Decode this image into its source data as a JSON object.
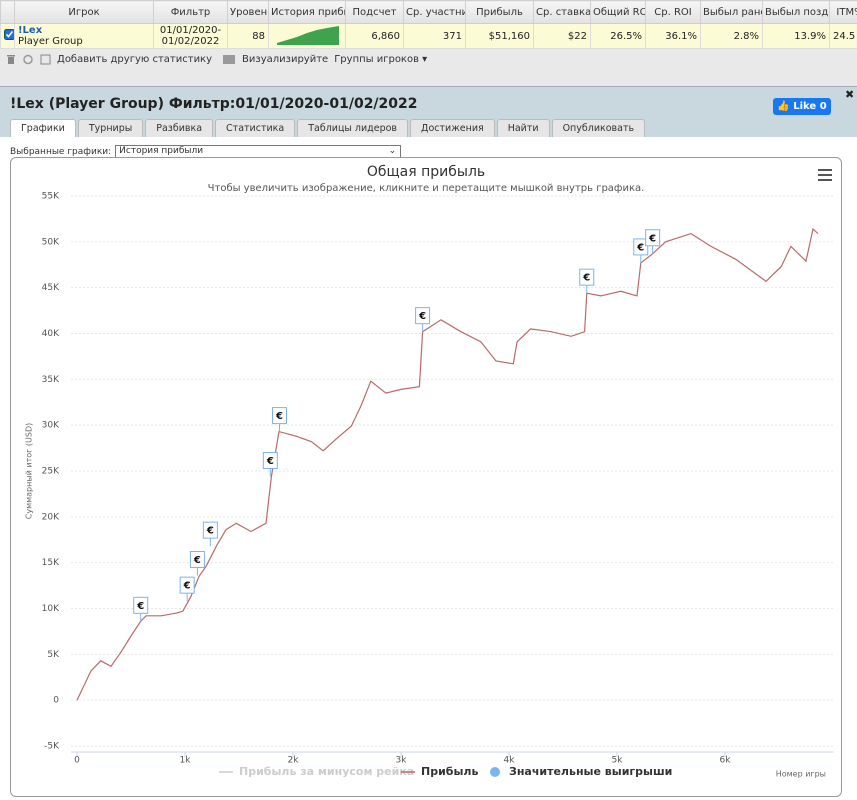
{
  "table": {
    "headers": [
      "Игрок",
      "Фильтр",
      "Уровен",
      "История прибы",
      "Подсчет",
      "Ср. участни",
      "Прибыль",
      "Ср. ставка",
      "Общий ROI",
      "Ср. ROI",
      "Выбыл ранс",
      "Выбыл позд",
      "ITM%"
    ],
    "row": {
      "player": "!Lex",
      "group": "Player Group",
      "filter": "01/01/2020-01/02/2022",
      "level": "88",
      "count": "6,860",
      "avg_entrants": "371",
      "profit": "$51,160",
      "avg_stake": "$22",
      "total_roi": "26.5%",
      "avg_roi": "36.1%",
      "early_exit": "2.8%",
      "late_exit": "13.9%",
      "itm": "24.5"
    }
  },
  "toolbar": {
    "add_stat": "Добавить другую статистику",
    "visualize": "Визуализируйте",
    "groups": "Группы игроков"
  },
  "panel": {
    "title": "!Lex (Player Group) Фильтр:01/01/2020-01/02/2022",
    "like_label": "Like",
    "like_count": "0",
    "tabs": [
      "Графики",
      "Турниры",
      "Разбивка",
      "Статистика",
      "Таблицы лидеров",
      "Достижения",
      "Найти",
      "Опубликовать"
    ],
    "select_label": "Выбранные графики:",
    "select_value": "История прибыли"
  },
  "chart_data": {
    "type": "line",
    "title": "Общая прибыль",
    "subtitle": "Чтобы увеличить изображение, кликните и перетащите мышкой внутрь графика.",
    "y_label": "Суммарный итог (USD)",
    "x_label": "Номер игры",
    "xlim": [
      0,
      6950
    ],
    "xticks": [
      0,
      {
        "value": 1000,
        "label": "1k"
      },
      {
        "value": 2000,
        "label": "2k"
      },
      {
        "value": 3000,
        "label": "3k"
      },
      {
        "value": 4000,
        "label": "4k"
      },
      {
        "value": 5000,
        "label": "5k"
      },
      {
        "value": 6000,
        "label": "6k"
      }
    ],
    "ylim": [
      -5000,
      55000
    ],
    "yticks": [
      {
        "value": -5000,
        "label": "-5K"
      },
      0,
      {
        "value": 5000,
        "label": "5K"
      },
      {
        "value": 10000,
        "label": "10K"
      },
      {
        "value": 15000,
        "label": "15K"
      },
      {
        "value": 20000,
        "label": "20K"
      },
      {
        "value": 25000,
        "label": "25K"
      },
      {
        "value": 30000,
        "label": "30K"
      },
      {
        "value": 35000,
        "label": "35K"
      },
      {
        "value": 40000,
        "label": "40K"
      },
      {
        "value": 45000,
        "label": "45K"
      },
      {
        "value": 50000,
        "label": "50K"
      },
      {
        "value": 55000,
        "label": "55K"
      }
    ],
    "grid": true,
    "x": [
      0,
      130,
      220,
      315,
      410,
      500,
      590,
      640,
      780,
      920,
      980,
      1055,
      1130,
      1195,
      1290,
      1380,
      1475,
      1610,
      1750,
      1800,
      1870,
      2030,
      2170,
      2280,
      2400,
      2540,
      2630,
      2720,
      2860,
      3000,
      3170,
      3200,
      3370,
      3555,
      3740,
      3880,
      4040,
      4075,
      4200,
      4390,
      4575,
      4700,
      4720,
      4850,
      5035,
      5185,
      5220,
      5330,
      5450,
      5685,
      5870,
      6100,
      6380,
      6520,
      6610,
      6750,
      6815,
      6860
    ],
    "series": [
      {
        "name": "Прибыль за минусом рейка",
        "color": "#cccccc",
        "visible": false
      },
      {
        "name": "Прибыль",
        "color": "#b86a6a",
        "values": [
          0,
          3200,
          4300,
          3700,
          5300,
          7000,
          8600,
          9200,
          9200,
          9500,
          9700,
          11300,
          13500,
          14600,
          16800,
          18600,
          19300,
          18400,
          19300,
          24400,
          29300,
          28800,
          28200,
          27200,
          28500,
          29900,
          32100,
          34800,
          33500,
          33900,
          34200,
          40200,
          41500,
          40200,
          39100,
          37000,
          36700,
          39100,
          40500,
          40200,
          39700,
          40200,
          44400,
          44100,
          44600,
          44100,
          47700,
          48700,
          50000,
          50900,
          49500,
          48100,
          45700,
          47300,
          49500,
          47900,
          51400,
          50900
        ]
      },
      {
        "name": "Значительные выигрыши",
        "color": "#7cb5ec",
        "marker_label": "€",
        "x": [
          590,
          1020,
          1115,
          1235,
          1790,
          1875,
          3200,
          4720,
          5220,
          5330
        ],
        "values": [
          8600,
          10800,
          13600,
          16800,
          24400,
          29300,
          40200,
          44400,
          47700,
          48700
        ]
      }
    ]
  }
}
